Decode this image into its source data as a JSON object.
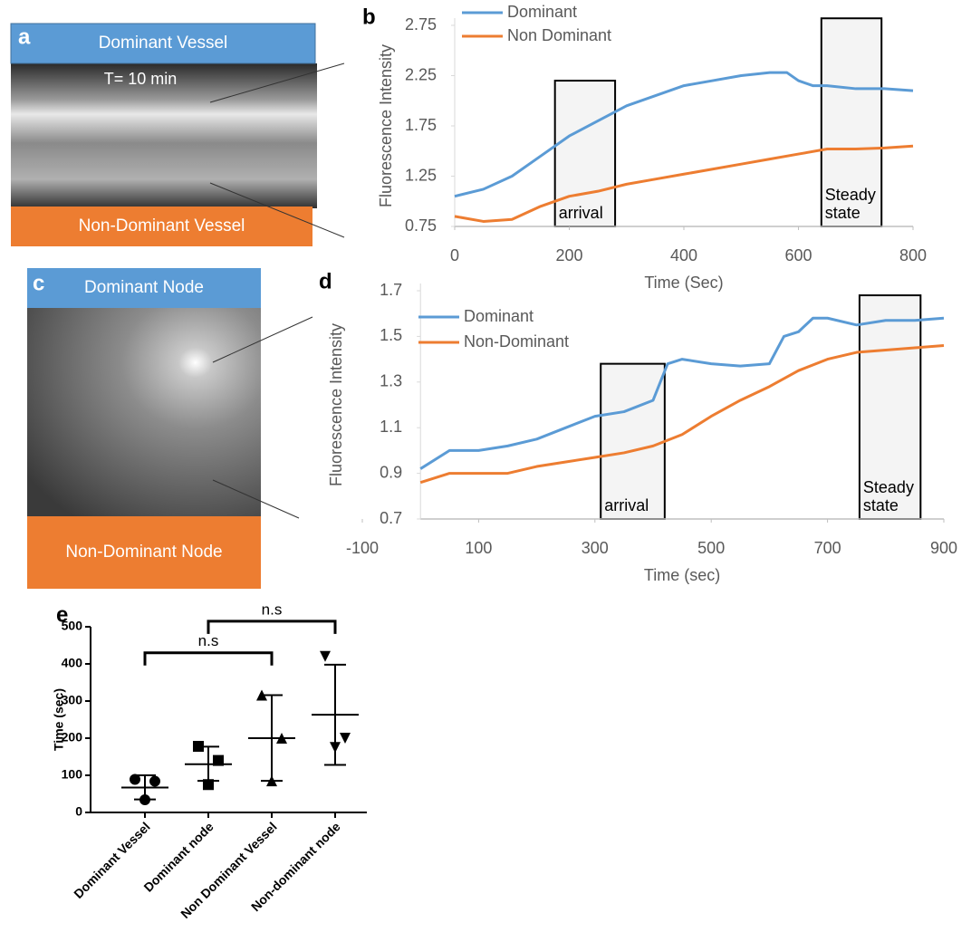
{
  "panels": {
    "a": {
      "label": "a",
      "header": "Dominant Vessel",
      "caption": "T= 10 min",
      "footer": "Non-Dominant Vessel"
    },
    "c": {
      "label": "c",
      "header": "Dominant Node",
      "footer": "Non-Dominant Node"
    }
  },
  "chart_data": [
    {
      "type": "line",
      "label": "b",
      "xlabel": "Time (Sec)",
      "ylabel": "Fluorescence Intensity",
      "xlim": [
        0,
        800
      ],
      "xticks": [
        0,
        200,
        400,
        600,
        800
      ],
      "ylim": [
        0.75,
        2.75
      ],
      "yticks": [
        0.75,
        1.25,
        1.75,
        2.25,
        2.75
      ],
      "series": [
        {
          "name": "Dominant",
          "color": "#5b9bd5",
          "x": [
            0,
            50,
            100,
            150,
            200,
            250,
            300,
            350,
            400,
            450,
            500,
            550,
            580,
            600,
            625,
            650,
            700,
            750,
            800
          ],
          "values": [
            1.05,
            1.12,
            1.25,
            1.45,
            1.65,
            1.8,
            1.95,
            2.05,
            2.15,
            2.2,
            2.25,
            2.28,
            2.28,
            2.2,
            2.15,
            2.15,
            2.12,
            2.12,
            2.1
          ]
        },
        {
          "name": "Non Dominant",
          "color": "#ed7d31",
          "x": [
            0,
            50,
            100,
            150,
            200,
            250,
            300,
            350,
            400,
            450,
            500,
            550,
            600,
            650,
            700,
            750,
            800
          ],
          "values": [
            0.85,
            0.8,
            0.82,
            0.95,
            1.05,
            1.1,
            1.17,
            1.22,
            1.27,
            1.32,
            1.37,
            1.42,
            1.47,
            1.52,
            1.52,
            1.53,
            1.55
          ]
        }
      ],
      "annotations": [
        {
          "text": "arrival",
          "x": [
            175,
            280
          ],
          "y": [
            0.75,
            2.2
          ]
        },
        {
          "text": "Steady state",
          "x": [
            640,
            745
          ],
          "y": [
            0.75,
            2.82
          ]
        }
      ]
    },
    {
      "type": "line",
      "label": "d",
      "xlabel": "Time (sec)",
      "ylabel": "Fluorescence Intensity",
      "xlim": [
        -100,
        900
      ],
      "xticks": [
        -100,
        100,
        300,
        500,
        700,
        900
      ],
      "ylim": [
        0.7,
        1.7
      ],
      "yticks": [
        0.7,
        0.9,
        1.1,
        1.3,
        1.5,
        1.7
      ],
      "series": [
        {
          "name": "Dominant",
          "color": "#5b9bd5",
          "x": [
            0,
            50,
            100,
            150,
            200,
            250,
            300,
            350,
            400,
            425,
            450,
            500,
            550,
            600,
            625,
            650,
            675,
            700,
            750,
            800,
            850,
            900
          ],
          "values": [
            0.92,
            1.0,
            1.0,
            1.02,
            1.05,
            1.1,
            1.15,
            1.17,
            1.22,
            1.38,
            1.4,
            1.38,
            1.37,
            1.38,
            1.5,
            1.52,
            1.58,
            1.58,
            1.55,
            1.57,
            1.57,
            1.58
          ]
        },
        {
          "name": "Non-Dominant",
          "color": "#ed7d31",
          "x": [
            0,
            50,
            100,
            150,
            200,
            250,
            300,
            350,
            400,
            450,
            500,
            550,
            600,
            650,
            700,
            750,
            800,
            850,
            900
          ],
          "values": [
            0.86,
            0.9,
            0.9,
            0.9,
            0.93,
            0.95,
            0.97,
            0.99,
            1.02,
            1.07,
            1.15,
            1.22,
            1.28,
            1.35,
            1.4,
            1.43,
            1.44,
            1.45,
            1.46
          ]
        }
      ],
      "annotations": [
        {
          "text": "arrival",
          "x": [
            310,
            420
          ],
          "y": [
            0.7,
            1.38
          ]
        },
        {
          "text": "Steady state",
          "x": [
            755,
            860
          ],
          "y": [
            0.7,
            1.68
          ]
        }
      ]
    },
    {
      "type": "dot",
      "label": "e",
      "ylabel": "Time  (sec)",
      "ylim": [
        0,
        500
      ],
      "yticks": [
        0,
        100,
        200,
        300,
        400,
        500
      ],
      "categories": [
        "Dominant Vessel",
        "Dominant node",
        "Non Dominant Vessel",
        "Non-dominant node"
      ],
      "groups": [
        {
          "marker": "circle",
          "values": [
            89,
            84,
            34
          ],
          "mean": 67,
          "range": [
            35,
            100
          ]
        },
        {
          "marker": "square",
          "values": [
            178,
            140,
            75
          ],
          "mean": 130,
          "range": [
            85,
            177
          ]
        },
        {
          "marker": "triangle",
          "values": [
            316,
            200,
            85
          ],
          "mean": 200,
          "range": [
            85,
            316
          ]
        },
        {
          "marker": "triangle-down",
          "values": [
            420,
            200,
            175
          ],
          "mean": 263,
          "range": [
            128,
            398
          ]
        }
      ],
      "annotations": [
        {
          "text": "n.s",
          "from": 0,
          "to": 2,
          "y": 430
        },
        {
          "text": "n.s",
          "from": 1,
          "to": 3,
          "y": 515
        }
      ]
    }
  ]
}
